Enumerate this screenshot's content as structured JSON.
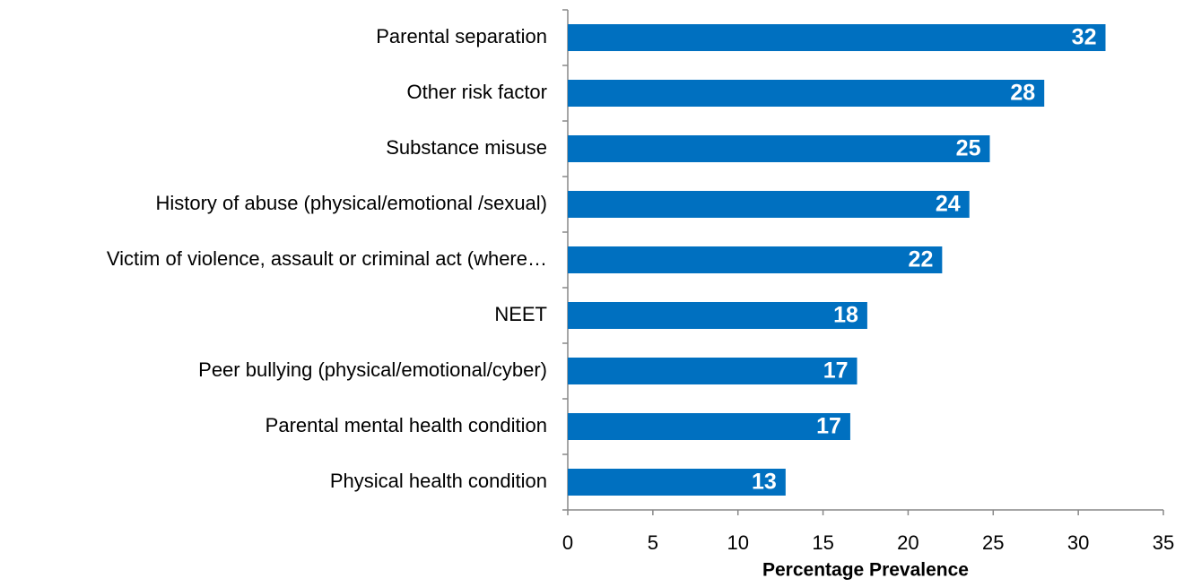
{
  "chart_data": {
    "type": "bar",
    "orientation": "horizontal",
    "xlabel": "Percentage Prevalence",
    "categories": [
      "Parental separation",
      "Other risk factor",
      "Substance misuse",
      "History of abuse (physical/emotional /sexual)",
      "Victim of violence, assault or criminal act (where…",
      "NEET",
      "Peer bullying (physical/emotional/cyber)",
      "Parental mental health condition",
      "Physical health condition"
    ],
    "values": [
      31.6,
      28.0,
      24.8,
      23.6,
      22.0,
      17.6,
      17.0,
      16.6,
      12.8
    ],
    "value_labels": [
      "32",
      "28",
      "25",
      "24",
      "22",
      "18",
      "17",
      "17",
      "13"
    ],
    "color": "#0070c0",
    "xlim": [
      0,
      35
    ],
    "xticks": [
      0,
      5,
      10,
      15,
      20,
      25,
      30,
      35
    ],
    "grid": false
  }
}
